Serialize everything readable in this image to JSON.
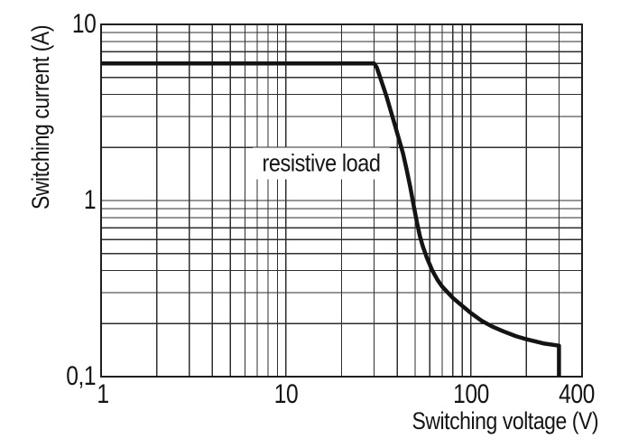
{
  "page": {
    "background": "#ffffff"
  },
  "colors": {
    "curve": "#141414",
    "grid": "#2e2e2e",
    "frame": "#1f1f1f",
    "text": "#141414",
    "background": "#ffffff"
  },
  "chart_data": {
    "type": "line",
    "title": "",
    "xlabel": "Switching voltage (V)",
    "ylabel": "Switching current (A)",
    "x_axis": {
      "scale": "log",
      "min": 1,
      "max": 400,
      "unit": "V",
      "ticks": [
        {
          "value": 1,
          "label": "1",
          "dx": 2
        },
        {
          "value": 10,
          "label": "10",
          "dx": 0
        },
        {
          "value": 100,
          "label": "100",
          "dx": 0
        },
        {
          "value": 400,
          "label": "400",
          "dx": -6
        }
      ]
    },
    "y_axis": {
      "scale": "log",
      "min": 0.1,
      "max": 10,
      "unit": "A",
      "ticks": [
        {
          "value": 10,
          "label": "10"
        },
        {
          "value": 1,
          "label": "1"
        },
        {
          "value": 0.1,
          "label": "0,1"
        }
      ]
    },
    "grid": {
      "minor_log_lines": true,
      "x_lines": "1-9, 10-90, 100-400 (every integer multiple per decade)",
      "y_lines": "0.1-0.9, 1-9, 10 (every integer multiple per decade)"
    },
    "annotation": {
      "text": "resistive load",
      "x": 15.4,
      "y": 1.62
    },
    "series": [
      {
        "name": "resistive load",
        "points": [
          [
            1,
            6
          ],
          [
            30,
            6
          ],
          [
            31,
            5.7
          ],
          [
            33,
            4.7
          ],
          [
            35,
            3.9
          ],
          [
            37,
            3.2
          ],
          [
            39,
            2.65
          ],
          [
            41,
            2.2
          ],
          [
            43,
            1.85
          ],
          [
            45,
            1.5
          ],
          [
            47,
            1.2
          ],
          [
            49,
            0.95
          ],
          [
            51,
            0.76
          ],
          [
            53,
            0.63
          ],
          [
            55,
            0.55
          ],
          [
            58,
            0.47
          ],
          [
            62,
            0.4
          ],
          [
            66,
            0.355
          ],
          [
            70,
            0.325
          ],
          [
            80,
            0.28
          ],
          [
            90,
            0.252
          ],
          [
            100,
            0.23
          ],
          [
            115,
            0.207
          ],
          [
            130,
            0.193
          ],
          [
            150,
            0.181
          ],
          [
            175,
            0.17
          ],
          [
            200,
            0.163
          ],
          [
            250,
            0.154
          ],
          [
            300,
            0.15
          ],
          [
            300,
            0.1
          ]
        ]
      }
    ]
  }
}
